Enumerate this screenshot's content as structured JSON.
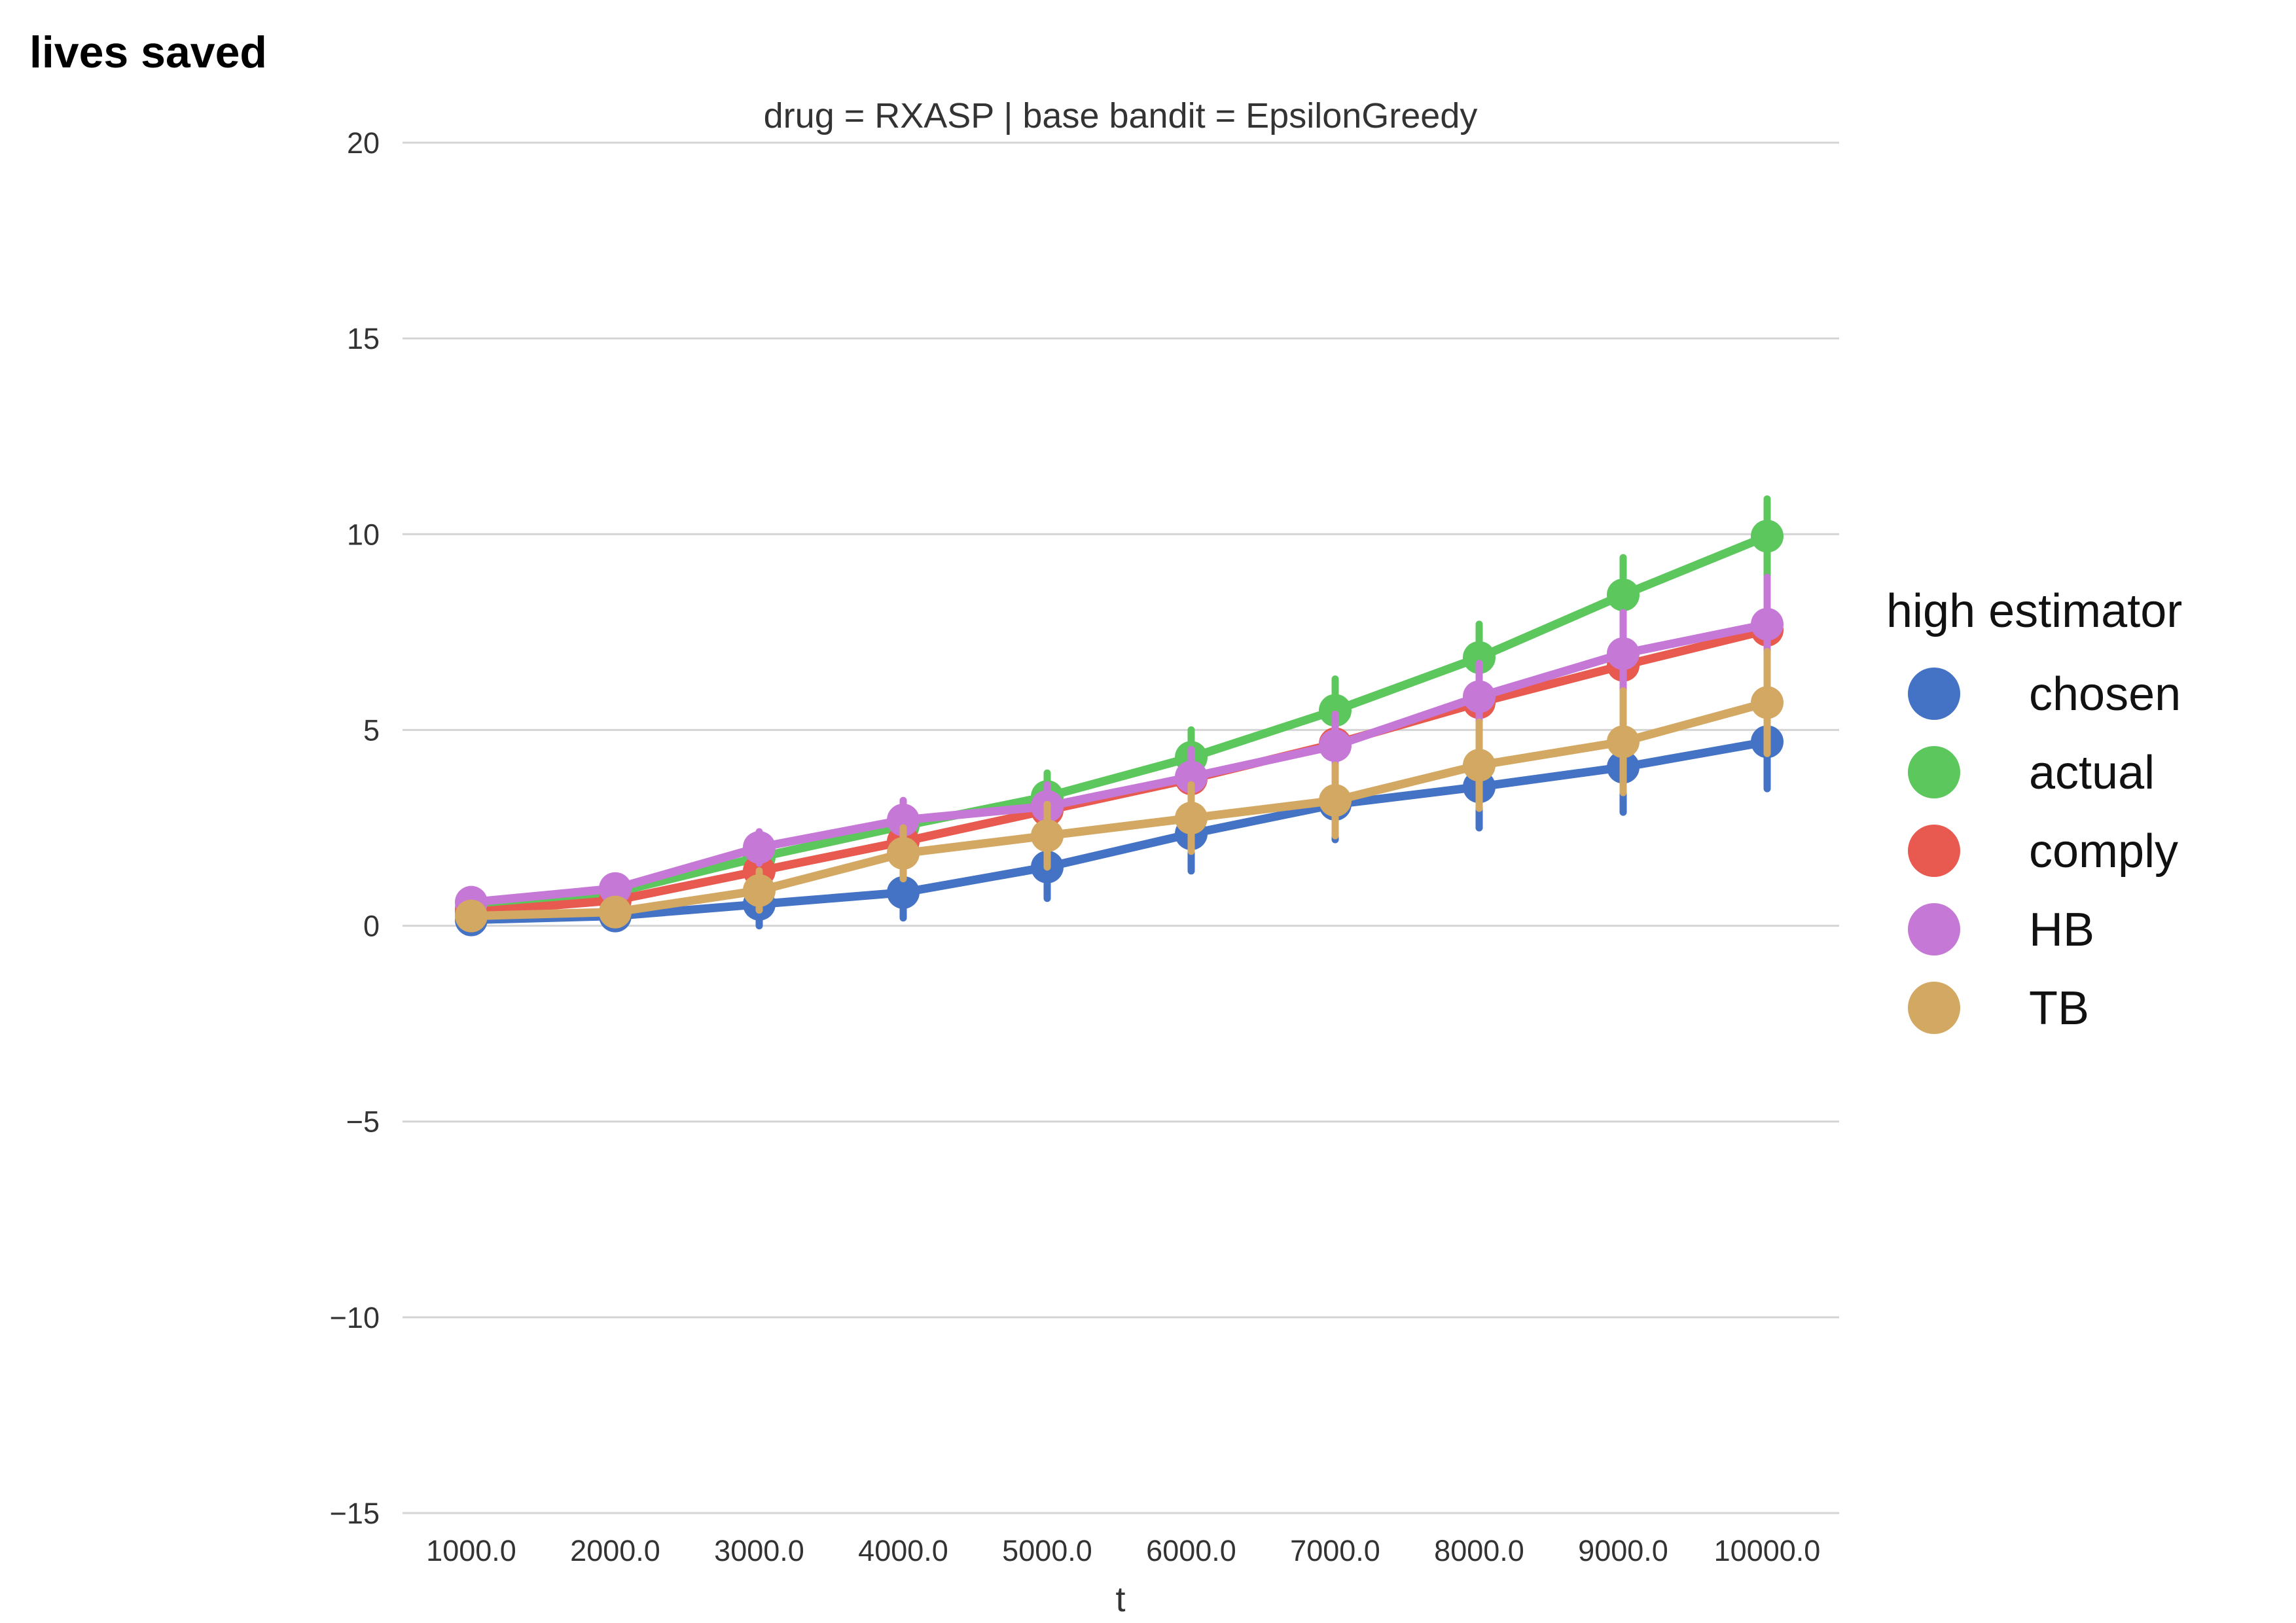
{
  "chart_data": {
    "type": "line",
    "corner_label": "lives saved",
    "title": "drug = RXASP | base bandit = EpsilonGreedy",
    "xlabel": "t",
    "ylabel": "",
    "categories": [
      "1000.0",
      "2000.0",
      "3000.0",
      "4000.0",
      "5000.0",
      "6000.0",
      "7000.0",
      "8000.0",
      "9000.0",
      "10000.0"
    ],
    "ylim": [
      -15,
      20
    ],
    "yticks": [
      -15,
      -10,
      -5,
      0,
      5,
      10,
      15,
      20
    ],
    "ytick_labels": [
      "−15",
      "−10",
      "−5",
      "0",
      "5",
      "10",
      "15",
      "20"
    ],
    "grid": true,
    "legend": {
      "title": "high estimator",
      "placement": "right"
    },
    "series": [
      {
        "name": "chosen",
        "color": "#4472c4",
        "values": [
          0.15,
          0.25,
          0.55,
          0.85,
          1.5,
          2.35,
          3.1,
          3.55,
          4.05,
          4.7
        ],
        "ci_low": [
          0.05,
          0.1,
          0.0,
          0.2,
          0.7,
          1.4,
          2.2,
          2.5,
          2.9,
          3.5
        ],
        "ci_high": [
          0.3,
          0.45,
          1.0,
          1.5,
          2.3,
          3.3,
          3.9,
          4.6,
          5.2,
          5.9
        ]
      },
      {
        "name": "actual",
        "color": "#5cc75c",
        "values": [
          0.45,
          0.85,
          1.75,
          2.55,
          3.3,
          4.3,
          5.5,
          6.85,
          8.45,
          9.95
        ],
        "ci_low": [
          0.3,
          0.6,
          1.4,
          2.1,
          2.8,
          3.6,
          4.8,
          6.1,
          7.5,
          8.9
        ],
        "ci_high": [
          0.6,
          1.1,
          2.1,
          3.0,
          3.9,
          5.0,
          6.3,
          7.7,
          9.4,
          10.9
        ]
      },
      {
        "name": "comply",
        "color": "#e8594f",
        "values": [
          0.35,
          0.65,
          1.4,
          2.15,
          2.95,
          3.75,
          4.65,
          5.7,
          6.65,
          7.55
        ],
        "ci_low": [
          0.2,
          0.45,
          1.05,
          1.7,
          2.4,
          3.1,
          3.9,
          4.8,
          5.6,
          6.4
        ],
        "ci_high": [
          0.5,
          0.85,
          1.75,
          2.6,
          3.5,
          4.4,
          5.4,
          6.6,
          7.7,
          8.7
        ]
      },
      {
        "name": "HB",
        "color": "#c678d6",
        "values": [
          0.6,
          0.95,
          2.0,
          2.7,
          3.05,
          3.8,
          4.6,
          5.85,
          6.95,
          7.7
        ],
        "ci_low": [
          0.4,
          0.7,
          1.6,
          2.2,
          2.5,
          3.1,
          3.8,
          5.0,
          5.9,
          6.5
        ],
        "ci_high": [
          0.8,
          1.2,
          2.4,
          3.2,
          3.6,
          4.5,
          5.4,
          6.7,
          8.0,
          8.9
        ]
      },
      {
        "name": "TB",
        "color": "#d2a862",
        "values": [
          0.25,
          0.35,
          0.9,
          1.85,
          2.3,
          2.75,
          3.2,
          4.1,
          4.7,
          5.7
        ],
        "ci_low": [
          0.05,
          0.15,
          0.4,
          1.2,
          1.5,
          1.9,
          2.3,
          3.0,
          3.4,
          4.4
        ],
        "ci_high": [
          0.45,
          0.55,
          1.4,
          2.5,
          3.1,
          3.6,
          4.1,
          5.2,
          6.0,
          7.0
        ]
      }
    ]
  }
}
